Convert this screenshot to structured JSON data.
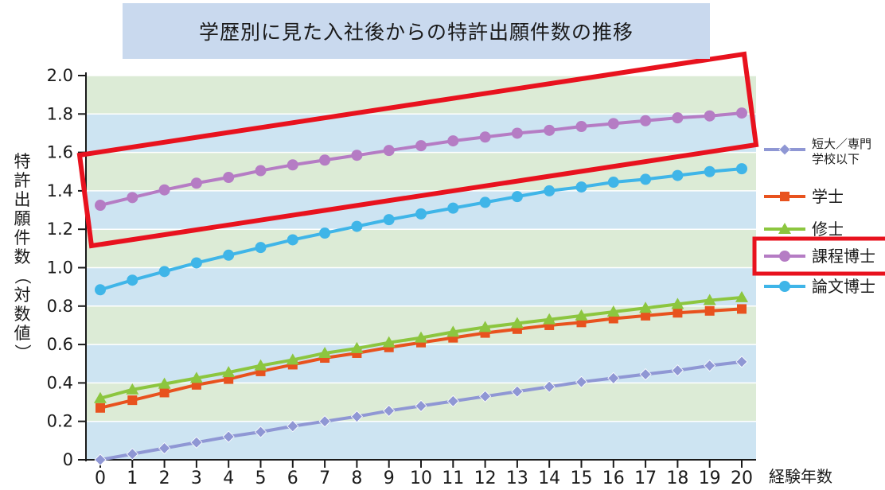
{
  "chart_data": {
    "type": "line",
    "title": "学歴別に見た入社後からの特許出願件数の推移",
    "xlabel": "経験年数",
    "ylabel": "特許出願件数（対数値）",
    "x": [
      0,
      1,
      2,
      3,
      4,
      5,
      6,
      7,
      8,
      9,
      10,
      11,
      12,
      13,
      14,
      15,
      16,
      17,
      18,
      19,
      20
    ],
    "ylim": [
      0,
      2.0
    ],
    "yticks": [
      "0",
      "0.2",
      "0.4",
      "0.6",
      "0.8",
      "1.0",
      "1.2",
      "1.4",
      "1.6",
      "1.8",
      "2.0"
    ],
    "grid": true,
    "legend_position": "right",
    "series": [
      {
        "name": "短大／専門学校以下",
        "legend_lines": [
          "短大／専門",
          "学校以下"
        ],
        "color": "#8f97d4",
        "marker": "diamond",
        "values": [
          0.0,
          0.03,
          0.06,
          0.09,
          0.12,
          0.145,
          0.175,
          0.2,
          0.225,
          0.255,
          0.28,
          0.305,
          0.33,
          0.355,
          0.38,
          0.405,
          0.425,
          0.445,
          0.465,
          0.49,
          0.51
        ]
      },
      {
        "name": "学士",
        "legend_lines": [
          "学士"
        ],
        "color": "#e8521e",
        "marker": "square",
        "values": [
          0.27,
          0.31,
          0.35,
          0.39,
          0.42,
          0.46,
          0.495,
          0.53,
          0.555,
          0.585,
          0.61,
          0.635,
          0.66,
          0.68,
          0.7,
          0.715,
          0.735,
          0.75,
          0.765,
          0.775,
          0.785
        ]
      },
      {
        "name": "修士",
        "legend_lines": [
          "修士"
        ],
        "color": "#8cc63f",
        "marker": "triangle",
        "values": [
          0.32,
          0.365,
          0.395,
          0.425,
          0.455,
          0.49,
          0.52,
          0.555,
          0.58,
          0.61,
          0.635,
          0.665,
          0.69,
          0.71,
          0.73,
          0.75,
          0.77,
          0.79,
          0.81,
          0.83,
          0.845
        ]
      },
      {
        "name": "課程博士",
        "legend_lines": [
          "課程博士"
        ],
        "color": "#b57cc4",
        "marker": "circle",
        "values": [
          1.325,
          1.365,
          1.405,
          1.44,
          1.47,
          1.505,
          1.535,
          1.56,
          1.585,
          1.61,
          1.635,
          1.66,
          1.68,
          1.7,
          1.715,
          1.735,
          1.75,
          1.765,
          1.78,
          1.79,
          1.805
        ]
      },
      {
        "name": "論文博士",
        "legend_lines": [
          "論文博士"
        ],
        "color": "#3fb5e8",
        "marker": "circle",
        "values": [
          0.885,
          0.935,
          0.98,
          1.025,
          1.065,
          1.105,
          1.145,
          1.18,
          1.215,
          1.25,
          1.28,
          1.31,
          1.34,
          1.37,
          1.4,
          1.42,
          1.445,
          1.46,
          1.48,
          1.5,
          1.515
        ]
      }
    ]
  },
  "annotations": {
    "highlight_color": "#e8121e",
    "highlight_series": "課程博士"
  }
}
